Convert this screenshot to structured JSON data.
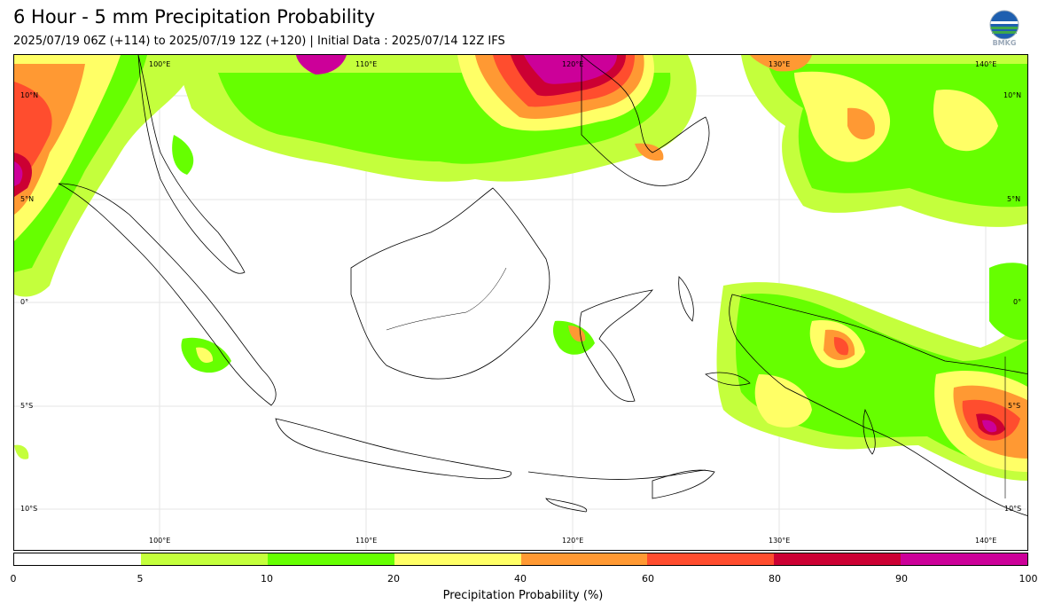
{
  "header": {
    "title": "6 Hour - 5 mm Precipitation Probability",
    "subtitle": "2025/07/19 06Z (+114) to 2025/07/19 12Z (+120) | Initial Data : 2025/07/14 12Z IFS",
    "logo_text": "BMKG"
  },
  "map": {
    "lon_labels_top": [
      "100°E",
      "110°E",
      "120°E",
      "130°E",
      "140°E"
    ],
    "lon_labels_bottom": [
      "100°E",
      "110°E",
      "120°E",
      "130°E",
      "140°E"
    ],
    "lat_labels_left": [
      "10°N",
      "5°N",
      "0°",
      "5°S",
      "10°S"
    ],
    "lat_labels_right": [
      "10°N",
      "5°N",
      "0°",
      "5°S",
      "10°S"
    ]
  },
  "colorbar": {
    "title": "Precipitation Probability (%)",
    "tick_labels": [
      "0",
      "5",
      "10",
      "20",
      "40",
      "60",
      "80",
      "90",
      "100"
    ],
    "colors": [
      "#ffffff",
      "#c4ff3c",
      "#66ff00",
      "#ffff66",
      "#ff9933",
      "#ff4d2e",
      "#cc0033",
      "#cc0099"
    ]
  }
}
